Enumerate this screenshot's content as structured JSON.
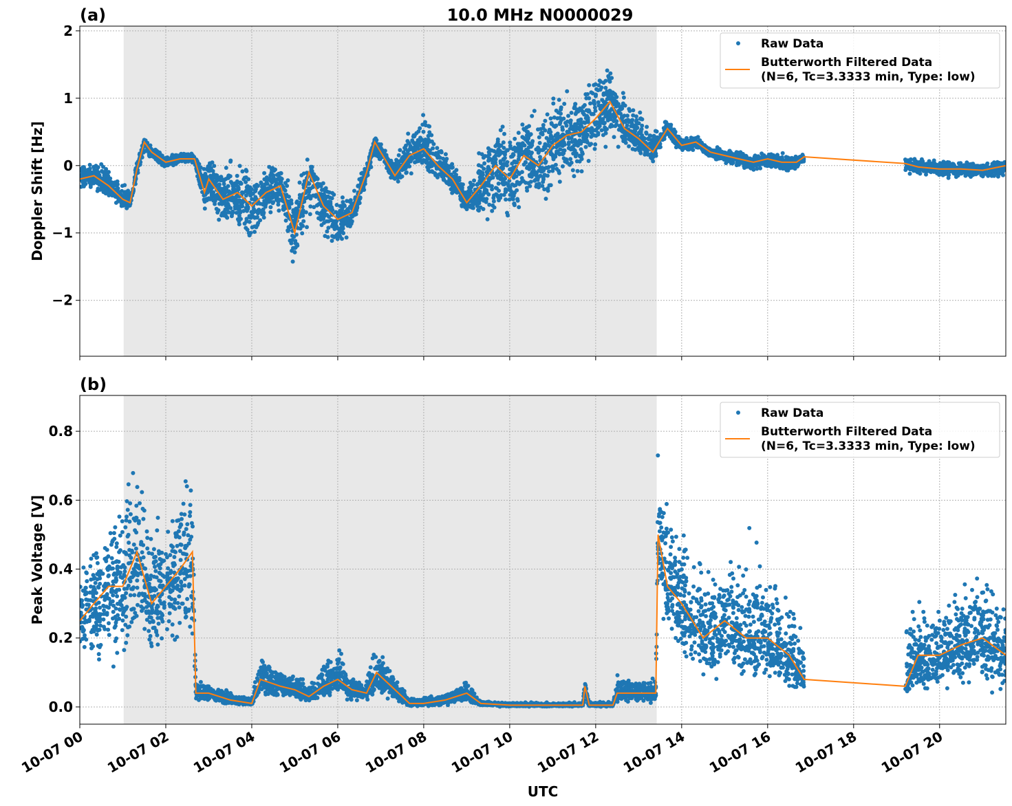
{
  "chart_data": {
    "title": "10.0 MHz N0000029",
    "xlabel": "UTC",
    "x_tick_labels": [
      "10-07 00",
      "10-07 02",
      "10-07 04",
      "10-07 06",
      "10-07 08",
      "10-07 10",
      "10-07 12",
      "10-07 14",
      "10-07 16",
      "10-07 18",
      "10-07 20"
    ],
    "x_ticks_hours": [
      0,
      2,
      4,
      6,
      8,
      10,
      12,
      14,
      16,
      18,
      20
    ],
    "xlim_hours": [
      0,
      21.54
    ],
    "shaded_interval_hours": [
      1.02,
      13.42
    ],
    "raw_data_gap_hours": [
      16.85,
      19.2
    ],
    "grid": true,
    "legend_placement": "upper-right",
    "legend": [
      "Raw Data",
      "Butterworth Filtered Data",
      "(N=6, Tc=3.3333 min, Type: low)"
    ],
    "colors": {
      "raw": "#1f77b4",
      "filtered": "#ff7f0e",
      "shade": "#e8e8e8"
    },
    "panels": [
      {
        "label": "(a)",
        "type": "scatter+line",
        "ylabel": "Doppler Shift [Hz]",
        "ylim": [
          -2.83,
          2.07
        ],
        "y_ticks": [
          -2,
          -1,
          0,
          1,
          2
        ],
        "y_tick_labels": [
          "−2",
          "−1",
          "0",
          "1",
          "2"
        ],
        "points_hours_filtered_rawlow_rawhigh": [
          [
            0,
            -0.2,
            -0.35,
            0.05
          ],
          [
            0.33,
            -0.15,
            -0.4,
            0.08
          ],
          [
            0.67,
            -0.3,
            -0.5,
            0.08
          ],
          [
            1.0,
            -0.5,
            -0.65,
            -0.2
          ],
          [
            1.17,
            -0.55,
            -0.65,
            -0.3
          ],
          [
            1.33,
            -0.05,
            -0.2,
            0.1
          ],
          [
            1.5,
            0.35,
            0.2,
            0.42
          ],
          [
            1.67,
            0.2,
            0.05,
            0.3
          ],
          [
            2.0,
            0.05,
            -0.05,
            0.15
          ],
          [
            2.33,
            0.1,
            0.0,
            0.2
          ],
          [
            2.67,
            0.1,
            0.0,
            0.2
          ],
          [
            2.9,
            -0.4,
            -0.8,
            0.1
          ],
          [
            3.0,
            -0.2,
            -0.7,
            0.2
          ],
          [
            3.33,
            -0.5,
            -1.1,
            0.1
          ],
          [
            3.67,
            -0.4,
            -1.0,
            0.2
          ],
          [
            4.0,
            -0.6,
            -1.4,
            0.0
          ],
          [
            4.33,
            -0.4,
            -0.9,
            0.1
          ],
          [
            4.67,
            -0.3,
            -0.8,
            0.2
          ],
          [
            5.0,
            -1.0,
            -1.7,
            -0.3
          ],
          [
            5.33,
            -0.1,
            -0.9,
            0.25
          ],
          [
            5.67,
            -0.6,
            -1.2,
            -0.2
          ],
          [
            6.0,
            -0.8,
            -1.3,
            -0.4
          ],
          [
            6.33,
            -0.7,
            -1.0,
            -0.3
          ],
          [
            6.67,
            -0.1,
            -0.3,
            0.1
          ],
          [
            6.86,
            0.35,
            0.1,
            0.45
          ],
          [
            7.0,
            0.2,
            -0.05,
            0.35
          ],
          [
            7.33,
            -0.15,
            -0.3,
            0.1
          ],
          [
            7.67,
            0.15,
            -0.2,
            0.6
          ],
          [
            8.0,
            0.25,
            -0.1,
            0.9
          ],
          [
            8.33,
            0.0,
            -0.3,
            0.5
          ],
          [
            8.67,
            -0.2,
            -0.5,
            0.2
          ],
          [
            9.0,
            -0.55,
            -0.7,
            -0.3
          ],
          [
            9.33,
            -0.3,
            -0.9,
            0.4
          ],
          [
            9.67,
            0.0,
            -1.0,
            0.6
          ],
          [
            10.0,
            -0.2,
            -1.0,
            0.8
          ],
          [
            10.33,
            0.15,
            -0.8,
            1.0
          ],
          [
            10.67,
            0.0,
            -0.7,
            0.9
          ],
          [
            11.0,
            0.3,
            -0.5,
            1.1
          ],
          [
            11.33,
            0.45,
            -0.4,
            1.2
          ],
          [
            11.67,
            0.5,
            -0.2,
            1.3
          ],
          [
            12.0,
            0.7,
            0.1,
            1.5
          ],
          [
            12.33,
            0.95,
            0.3,
            1.6
          ],
          [
            12.67,
            0.55,
            0.2,
            1.1
          ],
          [
            13.0,
            0.4,
            0.1,
            0.9
          ],
          [
            13.33,
            0.2,
            0.0,
            0.6
          ],
          [
            13.67,
            0.55,
            0.4,
            0.7
          ],
          [
            14.0,
            0.3,
            0.15,
            0.5
          ],
          [
            14.33,
            0.35,
            0.2,
            0.45
          ],
          [
            14.67,
            0.2,
            0.1,
            0.3
          ],
          [
            15.0,
            0.15,
            0.0,
            0.25
          ],
          [
            15.33,
            0.1,
            -0.05,
            0.25
          ],
          [
            15.67,
            0.05,
            -0.1,
            0.2
          ],
          [
            16.0,
            0.1,
            -0.05,
            0.2
          ],
          [
            16.33,
            0.05,
            -0.1,
            0.2
          ],
          [
            16.67,
            0.05,
            -0.1,
            0.18
          ],
          [
            16.85,
            0.13,
            0.0,
            0.2
          ],
          [
            19.2,
            0.03,
            -0.15,
            0.15
          ],
          [
            19.5,
            -0.02,
            -0.15,
            0.12
          ],
          [
            20.0,
            -0.05,
            -0.2,
            0.08
          ],
          [
            20.5,
            -0.05,
            -0.2,
            0.08
          ],
          [
            21.0,
            -0.07,
            -0.2,
            0.05
          ],
          [
            21.54,
            0.0,
            -0.2,
            0.1
          ]
        ]
      },
      {
        "label": "(b)",
        "type": "scatter+line",
        "ylabel": "Peak Voltage [V]",
        "ylim": [
          -0.05,
          0.904
        ],
        "y_ticks": [
          0.0,
          0.2,
          0.4,
          0.6,
          0.8
        ],
        "y_tick_labels": [
          "0.0",
          "0.2",
          "0.4",
          "0.6",
          "0.8"
        ],
        "points_hours_filtered_rawlow_rawhigh": [
          [
            0,
            0.25,
            0.1,
            0.45
          ],
          [
            0.33,
            0.3,
            0.1,
            0.55
          ],
          [
            0.67,
            0.35,
            0.1,
            0.65
          ],
          [
            1.0,
            0.35,
            0.1,
            0.6
          ],
          [
            1.33,
            0.45,
            0.15,
            0.8
          ],
          [
            1.67,
            0.3,
            0.1,
            0.65
          ],
          [
            2.0,
            0.35,
            0.15,
            0.6
          ],
          [
            2.33,
            0.4,
            0.15,
            0.65
          ],
          [
            2.62,
            0.45,
            0.1,
            0.85
          ],
          [
            2.7,
            0.04,
            0.01,
            0.08
          ],
          [
            3.0,
            0.04,
            0.01,
            0.07
          ],
          [
            3.5,
            0.02,
            0.005,
            0.05
          ],
          [
            4.0,
            0.01,
            0.005,
            0.03
          ],
          [
            4.2,
            0.08,
            0.03,
            0.17
          ],
          [
            4.67,
            0.06,
            0.02,
            0.12
          ],
          [
            5.0,
            0.05,
            0.02,
            0.1
          ],
          [
            5.33,
            0.03,
            0.01,
            0.08
          ],
          [
            5.67,
            0.06,
            0.02,
            0.14
          ],
          [
            6.0,
            0.08,
            0.03,
            0.2
          ],
          [
            6.33,
            0.05,
            0.01,
            0.1
          ],
          [
            6.67,
            0.04,
            0.01,
            0.09
          ],
          [
            6.9,
            0.1,
            0.03,
            0.2
          ],
          [
            7.33,
            0.05,
            0.01,
            0.1
          ],
          [
            7.67,
            0.01,
            0.0,
            0.03
          ],
          [
            8.0,
            0.01,
            0.0,
            0.03
          ],
          [
            8.5,
            0.02,
            0.0,
            0.04
          ],
          [
            9.0,
            0.04,
            0.01,
            0.08
          ],
          [
            9.33,
            0.01,
            0.0,
            0.02
          ],
          [
            10.0,
            0.005,
            0.0,
            0.015
          ],
          [
            11.0,
            0.005,
            0.0,
            0.015
          ],
          [
            11.7,
            0.005,
            0.0,
            0.015
          ],
          [
            11.75,
            0.06,
            0.02,
            0.08
          ],
          [
            11.85,
            0.005,
            0.0,
            0.015
          ],
          [
            12.4,
            0.005,
            0.0,
            0.02
          ],
          [
            12.5,
            0.04,
            0.01,
            0.1
          ],
          [
            13.0,
            0.04,
            0.01,
            0.08
          ],
          [
            13.4,
            0.04,
            0.01,
            0.1
          ],
          [
            13.45,
            0.5,
            0.3,
            0.82
          ],
          [
            13.67,
            0.35,
            0.2,
            0.6
          ],
          [
            14.0,
            0.3,
            0.1,
            0.55
          ],
          [
            14.5,
            0.2,
            0.05,
            0.45
          ],
          [
            15.0,
            0.25,
            0.05,
            0.5
          ],
          [
            15.5,
            0.2,
            0.05,
            0.55
          ],
          [
            16.0,
            0.2,
            0.05,
            0.42
          ],
          [
            16.5,
            0.15,
            0.03,
            0.4
          ],
          [
            16.85,
            0.08,
            0.05,
            0.3
          ],
          [
            19.2,
            0.06,
            0.03,
            0.3
          ],
          [
            19.5,
            0.15,
            0.03,
            0.32
          ],
          [
            20.0,
            0.15,
            0.03,
            0.35
          ],
          [
            20.5,
            0.18,
            0.03,
            0.38
          ],
          [
            21.0,
            0.2,
            0.03,
            0.4
          ],
          [
            21.54,
            0.15,
            0.02,
            0.35
          ]
        ]
      }
    ]
  }
}
